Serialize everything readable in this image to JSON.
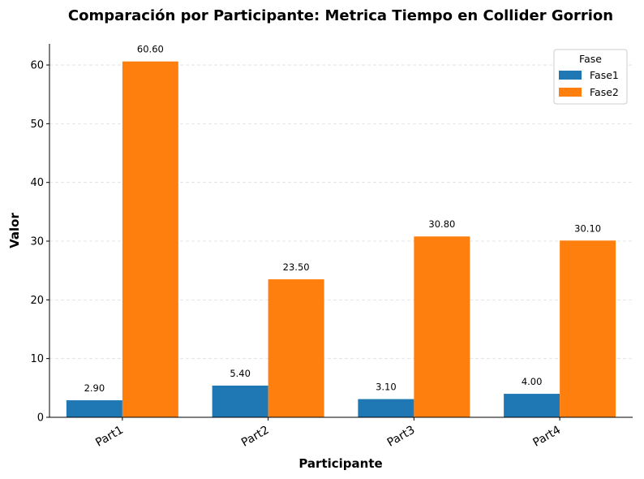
{
  "chart_data": {
    "type": "bar",
    "title": "Comparación por Participante: Metrica Tiempo en Collider Gorrion",
    "xlabel": "Participante",
    "ylabel": "Valor",
    "categories": [
      "Part1",
      "Part2",
      "Part3",
      "Part4"
    ],
    "series": [
      {
        "name": "Fase1",
        "values": [
          2.9,
          5.4,
          3.1,
          4.0
        ],
        "labels": [
          "2.90",
          "5.40",
          "3.10",
          "4.00"
        ],
        "color": "#1f77b4"
      },
      {
        "name": "Fase2",
        "values": [
          60.6,
          23.5,
          30.8,
          30.1
        ],
        "labels": [
          "60.60",
          "23.50",
          "30.80",
          "30.10"
        ],
        "color": "#ff7f0e"
      }
    ],
    "ylim": [
      0,
      63.6
    ],
    "yticks": [
      0,
      10,
      20,
      30,
      40,
      50,
      60
    ],
    "ytick_labels": [
      "0",
      "10",
      "20",
      "30",
      "40",
      "50",
      "60"
    ],
    "grid": "y-dashed",
    "legend": {
      "title": "Fase",
      "position": "top-right"
    }
  }
}
